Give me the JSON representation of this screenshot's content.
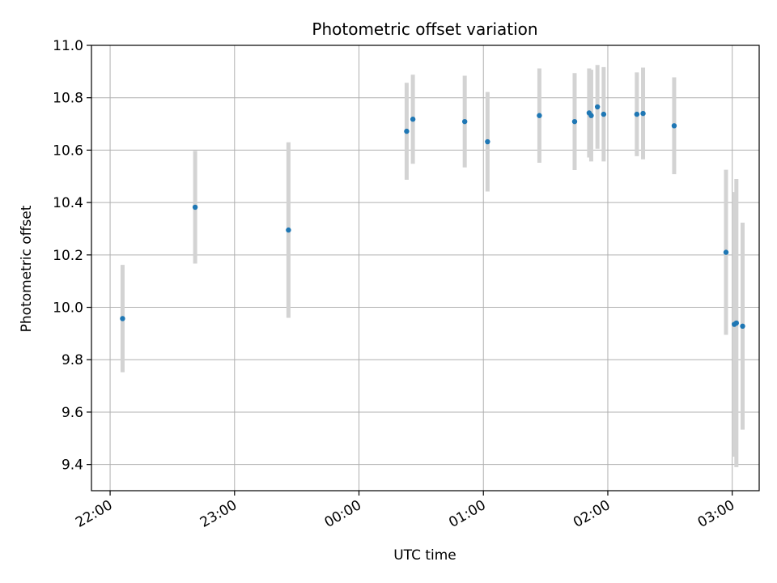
{
  "chart_data": {
    "type": "scatter",
    "title": "Photometric offset variation",
    "xlabel": "UTC time",
    "ylabel": "Photometric offset",
    "grid": true,
    "x_ticks": [
      "22:00",
      "23:00",
      "00:00",
      "01:00",
      "02:00",
      "03:00"
    ],
    "y_ticks": [
      "9.4",
      "9.6",
      "9.8",
      "10.0",
      "10.2",
      "10.4",
      "10.6",
      "10.8",
      "11.0"
    ],
    "colors": {
      "point": "#1f77b4",
      "errorbar": "#d3d3d3",
      "grid": "#b0b0b0"
    },
    "x_range": [
      "21:51",
      "03:13"
    ],
    "ylim": [
      9.3,
      11.0
    ],
    "points": [
      {
        "time": "22:06",
        "y": 9.957,
        "err": 0.205
      },
      {
        "time": "22:41",
        "y": 10.382,
        "err": 0.215
      },
      {
        "time": "23:26",
        "y": 10.295,
        "err": 0.335
      },
      {
        "time": "00:23",
        "y": 10.672,
        "err": 0.185
      },
      {
        "time": "00:26",
        "y": 10.718,
        "err": 0.17
      },
      {
        "time": "00:51",
        "y": 10.709,
        "err": 0.175
      },
      {
        "time": "01:02",
        "y": 10.632,
        "err": 0.19
      },
      {
        "time": "01:27",
        "y": 10.732,
        "err": 0.18
      },
      {
        "time": "01:44",
        "y": 10.709,
        "err": 0.185
      },
      {
        "time": "01:51",
        "y": 10.742,
        "err": 0.17
      },
      {
        "time": "01:52",
        "y": 10.732,
        "err": 0.175
      },
      {
        "time": "01:55",
        "y": 10.765,
        "err": 0.16
      },
      {
        "time": "01:58",
        "y": 10.737,
        "err": 0.18
      },
      {
        "time": "02:14",
        "y": 10.737,
        "err": 0.16
      },
      {
        "time": "02:17",
        "y": 10.74,
        "err": 0.175
      },
      {
        "time": "02:32",
        "y": 10.693,
        "err": 0.185
      },
      {
        "time": "02:57",
        "y": 10.21,
        "err": 0.315
      },
      {
        "time": "03:01",
        "y": 9.935,
        "err": 0.505
      },
      {
        "time": "03:02",
        "y": 9.94,
        "err": 0.55
      },
      {
        "time": "03:05",
        "y": 9.928,
        "err": 0.395
      }
    ]
  }
}
